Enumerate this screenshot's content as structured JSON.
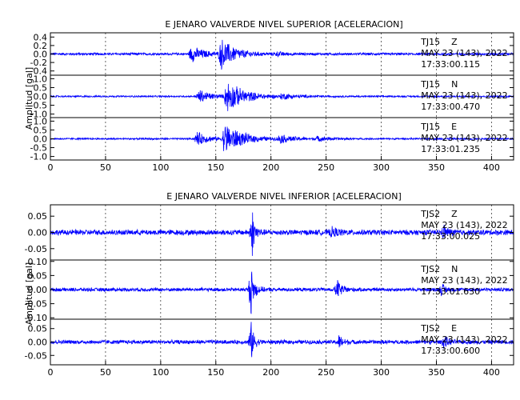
{
  "chart_data": [
    {
      "type": "line",
      "title": "E JENARO VALVERDE NIVEL SUPERIOR [ACELERACION]",
      "ylabel": "Amplitud [gal]",
      "xlabel": "",
      "xlim": [
        0,
        420
      ],
      "xticks": [
        0,
        50,
        100,
        150,
        200,
        250,
        300,
        350,
        400
      ],
      "grid": "vertical dotted",
      "line_color": "#0000ff",
      "series": [
        {
          "name": "TJ15 Z",
          "station": "TJ15",
          "component": "Z",
          "date": "MAY 23 (143), 2022",
          "time": "17:33:00.115",
          "ylim": [
            -0.5,
            0.5
          ],
          "yticks": [
            "0.4",
            "0.2",
            "0.0",
            "-0.2",
            "-0.4"
          ],
          "yticks_values": [
            0.4,
            0.2,
            0.0,
            -0.2,
            -0.4
          ],
          "noise": 0.03,
          "bursts": [
            {
              "t": 128,
              "amp": 0.2,
              "dur": 25
            },
            {
              "t": 155,
              "amp": 0.38,
              "dur": 28
            },
            {
              "t": 205,
              "amp": 0.04,
              "dur": 20
            }
          ]
        },
        {
          "name": "TJ15 N",
          "station": "TJ15",
          "component": "N",
          "date": "MAY 23 (143), 2022",
          "time": "17:33:00.470",
          "ylim": [
            -1.2,
            1.2
          ],
          "yticks": [
            "1.0",
            "0.5",
            "0.0",
            "-0.5",
            "-1.0"
          ],
          "yticks_values": [
            1.0,
            0.5,
            0.0,
            -0.5,
            -1.0
          ],
          "noise": 0.05,
          "bursts": [
            {
              "t": 135,
              "amp": 0.4,
              "dur": 25
            },
            {
              "t": 160,
              "amp": 0.95,
              "dur": 35
            },
            {
              "t": 210,
              "amp": 0.15,
              "dur": 30
            }
          ]
        },
        {
          "name": "TJ15 E",
          "station": "TJ15",
          "component": "E",
          "date": "MAY 23 (143), 2022",
          "time": "17:33:01.235",
          "ylim": [
            -1.2,
            1.2
          ],
          "yticks": [
            "1.0",
            "0.5",
            "0.0",
            "-0.5",
            "-1.0"
          ],
          "yticks_values": [
            1.0,
            0.5,
            0.0,
            -0.5,
            -1.0
          ],
          "noise": 0.05,
          "bursts": [
            {
              "t": 133,
              "amp": 0.4,
              "dur": 25
            },
            {
              "t": 158,
              "amp": 0.95,
              "dur": 35
            },
            {
              "t": 208,
              "amp": 0.22,
              "dur": 30
            },
            {
              "t": 242,
              "amp": 0.12,
              "dur": 30
            }
          ]
        }
      ]
    },
    {
      "type": "line",
      "title": "E JENARO VALVERDE NIVEL INFERIOR [ACELERACION]",
      "ylabel": "Amplitud [gal]",
      "xlabel": "",
      "xlim": [
        0,
        420
      ],
      "xticks": [
        0,
        50,
        100,
        150,
        200,
        250,
        300,
        350,
        400
      ],
      "grid": "vertical dotted",
      "line_color": "#0000ff",
      "series": [
        {
          "name": "TJS2 Z",
          "station": "TJS2",
          "component": "Z",
          "date": "MAY 23 (143), 2022",
          "time": "17:33:00.025",
          "ylim": [
            -0.085,
            0.085
          ],
          "yticks": [
            "0.05",
            "0.00",
            "-0.05"
          ],
          "yticks_values": [
            0.05,
            0.0,
            -0.05
          ],
          "noise": 0.009,
          "bursts": [
            {
              "t": 183,
              "amp": 0.075,
              "dur": 6
            },
            {
              "t": 255,
              "amp": 0.012,
              "dur": 15
            },
            {
              "t": 357,
              "amp": 0.02,
              "dur": 8
            }
          ]
        },
        {
          "name": "TJS2 N",
          "station": "TJS2",
          "component": "N",
          "date": "MAY 23 (143), 2022",
          "time": "17:33:01.630",
          "ylim": [
            -0.105,
            0.105
          ],
          "yticks": [
            "0.10",
            "0.05",
            "0.00",
            "-0.05",
            "-0.10"
          ],
          "yticks_values": [
            0.1,
            0.05,
            0.0,
            -0.05,
            -0.1
          ],
          "noise": 0.007,
          "bursts": [
            {
              "t": 182,
              "amp": 0.09,
              "dur": 7
            },
            {
              "t": 260,
              "amp": 0.035,
              "dur": 10
            },
            {
              "t": 355,
              "amp": 0.02,
              "dur": 8
            }
          ]
        },
        {
          "name": "TJS2 E",
          "station": "TJS2",
          "component": "E",
          "date": "MAY 23 (143), 2022",
          "time": "17:33:00.600",
          "ylim": [
            -0.085,
            0.085
          ],
          "yticks": [
            "0.05",
            "0.00",
            "-0.05"
          ],
          "yticks_values": [
            0.05,
            0.0,
            -0.05
          ],
          "noise": 0.008,
          "bursts": [
            {
              "t": 182,
              "amp": 0.075,
              "dur": 6
            },
            {
              "t": 262,
              "amp": 0.025,
              "dur": 8
            },
            {
              "t": 357,
              "amp": 0.025,
              "dur": 8
            }
          ]
        }
      ]
    }
  ]
}
